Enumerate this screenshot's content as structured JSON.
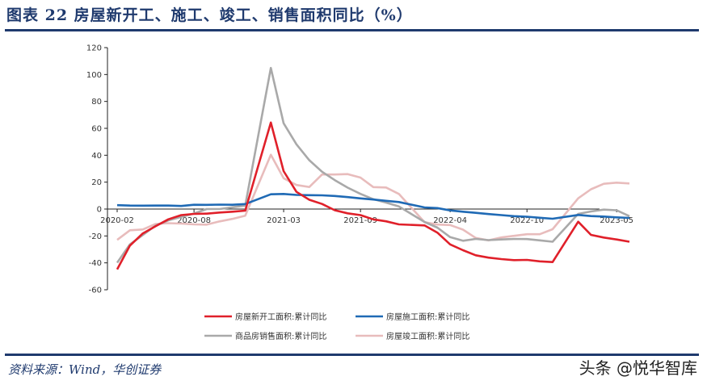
{
  "header": {
    "title": "图表 22   房屋新开工、施工、竣工、销售面积同比（%）"
  },
  "footer": {
    "source": "资料来源：Wind，华创证券",
    "watermark": "头条 @悦华智库"
  },
  "colors": {
    "title": "#1f3a6e",
    "new_starts": "#e0202a",
    "under_construction": "#1f6ab5",
    "sales": "#a9a9a9",
    "completions": "#e8bcbc",
    "axis": "#222222"
  },
  "chart_data": {
    "type": "line",
    "title": "房屋新开工、施工、竣工、销售面积同比（%）",
    "xlabel": "",
    "ylabel": "%",
    "ylim": [
      -60,
      120
    ],
    "yticks": [
      -60,
      -40,
      -20,
      0,
      20,
      40,
      60,
      80,
      100,
      120
    ],
    "xtick_labels": [
      "2020-02",
      "2020-08",
      "2021-03",
      "2021-09",
      "2022-04",
      "2022-10",
      "2023-05"
    ],
    "grid": false,
    "legend_position": "bottom",
    "x": [
      "2020-02",
      "2020-03",
      "2020-04",
      "2020-05",
      "2020-06",
      "2020-07",
      "2020-08",
      "2020-09",
      "2020-10",
      "2020-11",
      "2020-12",
      "2021-02",
      "2021-03",
      "2021-04",
      "2021-05",
      "2021-06",
      "2021-07",
      "2021-08",
      "2021-09",
      "2021-10",
      "2021-11",
      "2021-12",
      "2022-02",
      "2022-03",
      "2022-04",
      "2022-05",
      "2022-06",
      "2022-07",
      "2022-08",
      "2022-09",
      "2022-10",
      "2022-11",
      "2022-12",
      "2023-02",
      "2023-03",
      "2023-04",
      "2023-05",
      "2023-06"
    ],
    "series": [
      {
        "name": "房屋新开工面积:累计同比",
        "color": "#e0202a",
        "values": [
          -44.9,
          -27.2,
          -18.1,
          -12.8,
          -7.6,
          -4.5,
          -3.6,
          -3.4,
          -2.6,
          -2.0,
          -1.2,
          64.3,
          28.2,
          12.8,
          6.9,
          3.8,
          -0.9,
          -3.2,
          -4.5,
          -7.7,
          -9.1,
          -11.4,
          -12.2,
          -17.5,
          -26.3,
          -30.6,
          -34.4,
          -36.1,
          -37.2,
          -38.0,
          -37.8,
          -38.9,
          -39.4,
          -9.4,
          -19.2,
          -21.2,
          -22.6,
          -24.3
        ]
      },
      {
        "name": "房屋施工面积:累计同比",
        "color": "#1f6ab5",
        "values": [
          2.9,
          2.6,
          2.5,
          2.6,
          2.6,
          2.3,
          3.2,
          3.1,
          3.3,
          3.2,
          3.7,
          11.0,
          11.2,
          10.5,
          10.3,
          10.2,
          9.7,
          8.9,
          7.9,
          7.1,
          6.1,
          5.2,
          1.2,
          0.7,
          -1.0,
          -2.0,
          -2.8,
          -3.7,
          -4.5,
          -5.3,
          -5.7,
          -6.5,
          -7.2,
          -4.4,
          -5.2,
          -5.6,
          -6.2,
          -6.6
        ]
      },
      {
        "name": "商品房销售面积:累计同比",
        "color": "#a9a9a9",
        "values": [
          -39.9,
          -26.3,
          -19.3,
          -12.3,
          -8.4,
          -5.8,
          -3.3,
          0.0,
          0.0,
          1.3,
          2.6,
          104.9,
          63.8,
          48.1,
          36.3,
          27.7,
          21.5,
          15.9,
          11.3,
          7.3,
          4.8,
          1.9,
          -9.6,
          -13.8,
          -20.9,
          -23.6,
          -22.2,
          -23.1,
          -22.6,
          -22.2,
          -22.3,
          -23.3,
          -24.3,
          -3.6,
          -1.8,
          -0.4,
          -0.9,
          -5.3
        ]
      },
      {
        "name": "房屋竣工面积:累计同比",
        "color": "#e8bcbc",
        "values": [
          -22.9,
          -15.8,
          -15.2,
          -11.1,
          -10.5,
          -10.8,
          -11.4,
          -11.6,
          -9.2,
          -7.3,
          -4.9,
          40.4,
          22.9,
          17.9,
          16.4,
          25.7,
          25.7,
          26.0,
          23.4,
          16.3,
          16.0,
          11.2,
          -9.8,
          -11.5,
          -11.9,
          -15.3,
          -21.5,
          -23.3,
          -21.1,
          -19.9,
          -18.7,
          -18.7,
          -15.0,
          8.0,
          14.7,
          18.8,
          19.6,
          19.0
        ]
      }
    ]
  },
  "legend": [
    {
      "label": "房屋新开工面积:累计同比",
      "color": "#e0202a"
    },
    {
      "label": "房屋施工面积:累计同比",
      "color": "#1f6ab5"
    },
    {
      "label": "商品房销售面积:累计同比",
      "color": "#a9a9a9"
    },
    {
      "label": "房屋竣工面积:累计同比",
      "color": "#e8bcbc"
    }
  ]
}
